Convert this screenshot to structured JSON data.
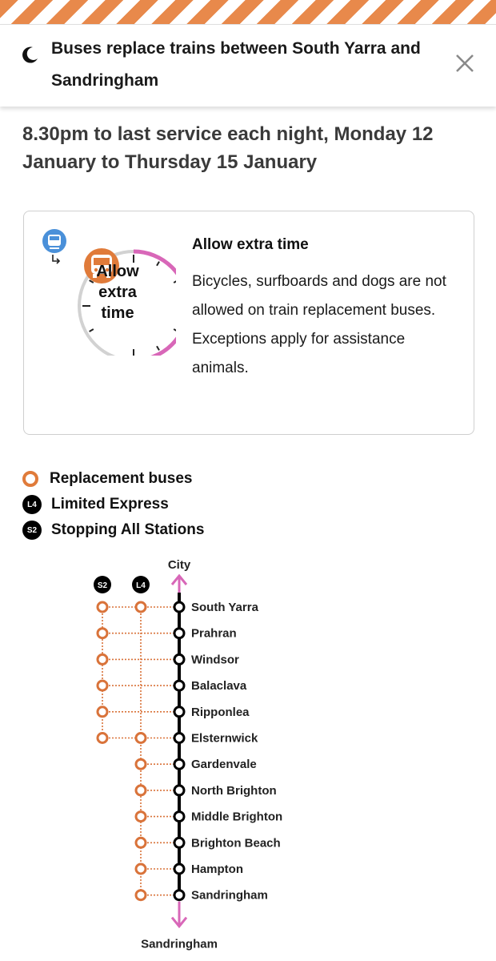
{
  "header": {
    "title": "Buses replace trains between South Yarra and Sandringham",
    "moon_icon": "moon-icon",
    "close_icon": "close-icon"
  },
  "date_heading": "8.30pm to last service each night, Monday 12 January to Thursday 15 January",
  "card": {
    "clock_lines": [
      "Allow",
      "extra",
      "time"
    ],
    "title": "Allow extra time",
    "body": "Bicycles, surfboards and dogs are not allowed on train replacement buses. Exceptions apply for assistance animals.",
    "icons": [
      "train-icon",
      "bus-icon",
      "clock-icon"
    ]
  },
  "legend": [
    {
      "symbol": "",
      "label": "Replacement buses"
    },
    {
      "symbol": "L4",
      "label": "Limited Express"
    },
    {
      "symbol": "S2",
      "label": "Stopping All Stations"
    }
  ],
  "diagram": {
    "top_label": "City",
    "bottom_label": "Sandringham",
    "service_badges": [
      "S2",
      "L4"
    ],
    "stations": [
      {
        "name": "South Yarra",
        "s2": true,
        "l4": true
      },
      {
        "name": "Prahran",
        "s2": true,
        "l4": false
      },
      {
        "name": "Windsor",
        "s2": true,
        "l4": false
      },
      {
        "name": "Balaclava",
        "s2": true,
        "l4": false
      },
      {
        "name": "Ripponlea",
        "s2": true,
        "l4": false
      },
      {
        "name": "Elsternwick",
        "s2": true,
        "l4": true
      },
      {
        "name": "Gardenvale",
        "s2": false,
        "l4": true
      },
      {
        "name": "North Brighton",
        "s2": false,
        "l4": true
      },
      {
        "name": "Middle Brighton",
        "s2": false,
        "l4": true
      },
      {
        "name": "Brighton Beach",
        "s2": false,
        "l4": true
      },
      {
        "name": "Hampton",
        "s2": false,
        "l4": true
      },
      {
        "name": "Sandringham",
        "s2": false,
        "l4": true
      }
    ],
    "colors": {
      "bus": "#d9733a",
      "line": "#000000",
      "arrow": "#d867b8"
    }
  },
  "colors": {
    "stripe": "#e8894b",
    "clock_arc": "#d867b8",
    "bus_badge": "#e07b3a",
    "train_badge": "#4a90d9"
  }
}
